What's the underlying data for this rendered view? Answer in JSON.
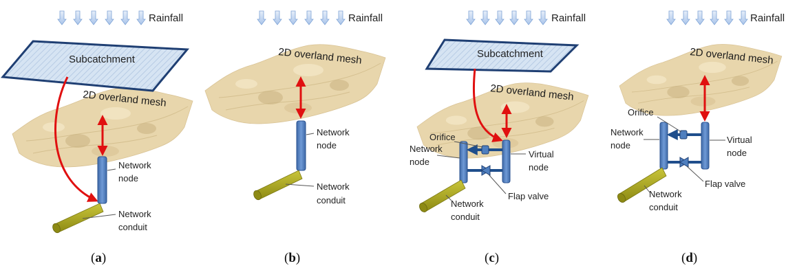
{
  "panels": [
    {
      "caption": {
        "open": "(",
        "letter": "a",
        "close": ")"
      },
      "rainfall": "Rainfall",
      "subcatchment": "Subcatchment",
      "mesh": "2D overland mesh",
      "node": [
        "Network",
        "node"
      ],
      "conduit": [
        "Network",
        "conduit"
      ]
    },
    {
      "caption": {
        "open": "(",
        "letter": "b",
        "close": ")"
      },
      "rainfall": "Rainfall",
      "mesh": "2D overland mesh",
      "node": [
        "Network",
        "node"
      ],
      "conduit": [
        "Network",
        "conduit"
      ]
    },
    {
      "caption": {
        "open": "(",
        "letter": "c",
        "close": ")"
      },
      "rainfall": "Rainfall",
      "subcatchment": "Subcatchment",
      "mesh": "2D overland mesh",
      "orifice": "Orifice",
      "node": [
        "Network",
        "node"
      ],
      "virtual": [
        "Virtual",
        "node"
      ],
      "conduit": [
        "Network",
        "conduit"
      ],
      "flap": "Flap valve"
    },
    {
      "caption": {
        "open": "(",
        "letter": "d",
        "close": ")"
      },
      "rainfall": "Rainfall",
      "mesh": "2D overland mesh",
      "orifice": "Orifice",
      "node": [
        "Network",
        "node"
      ],
      "virtual": [
        "Virtual",
        "node"
      ],
      "conduit": [
        "Network",
        "conduit"
      ],
      "flap": "Flap valve"
    }
  ],
  "colors": {
    "mesh": "#e8d6ac",
    "mesh_dark": "#c9b282",
    "subcatchment_fill": "#d6e4f3",
    "subcatchment_stroke": "#1f3f73",
    "node": "#4f7fbf",
    "pipe": "#1f4e8c",
    "conduit": "#a6a21e",
    "arrow": "#e01010",
    "rain": "#a9c4ea"
  }
}
